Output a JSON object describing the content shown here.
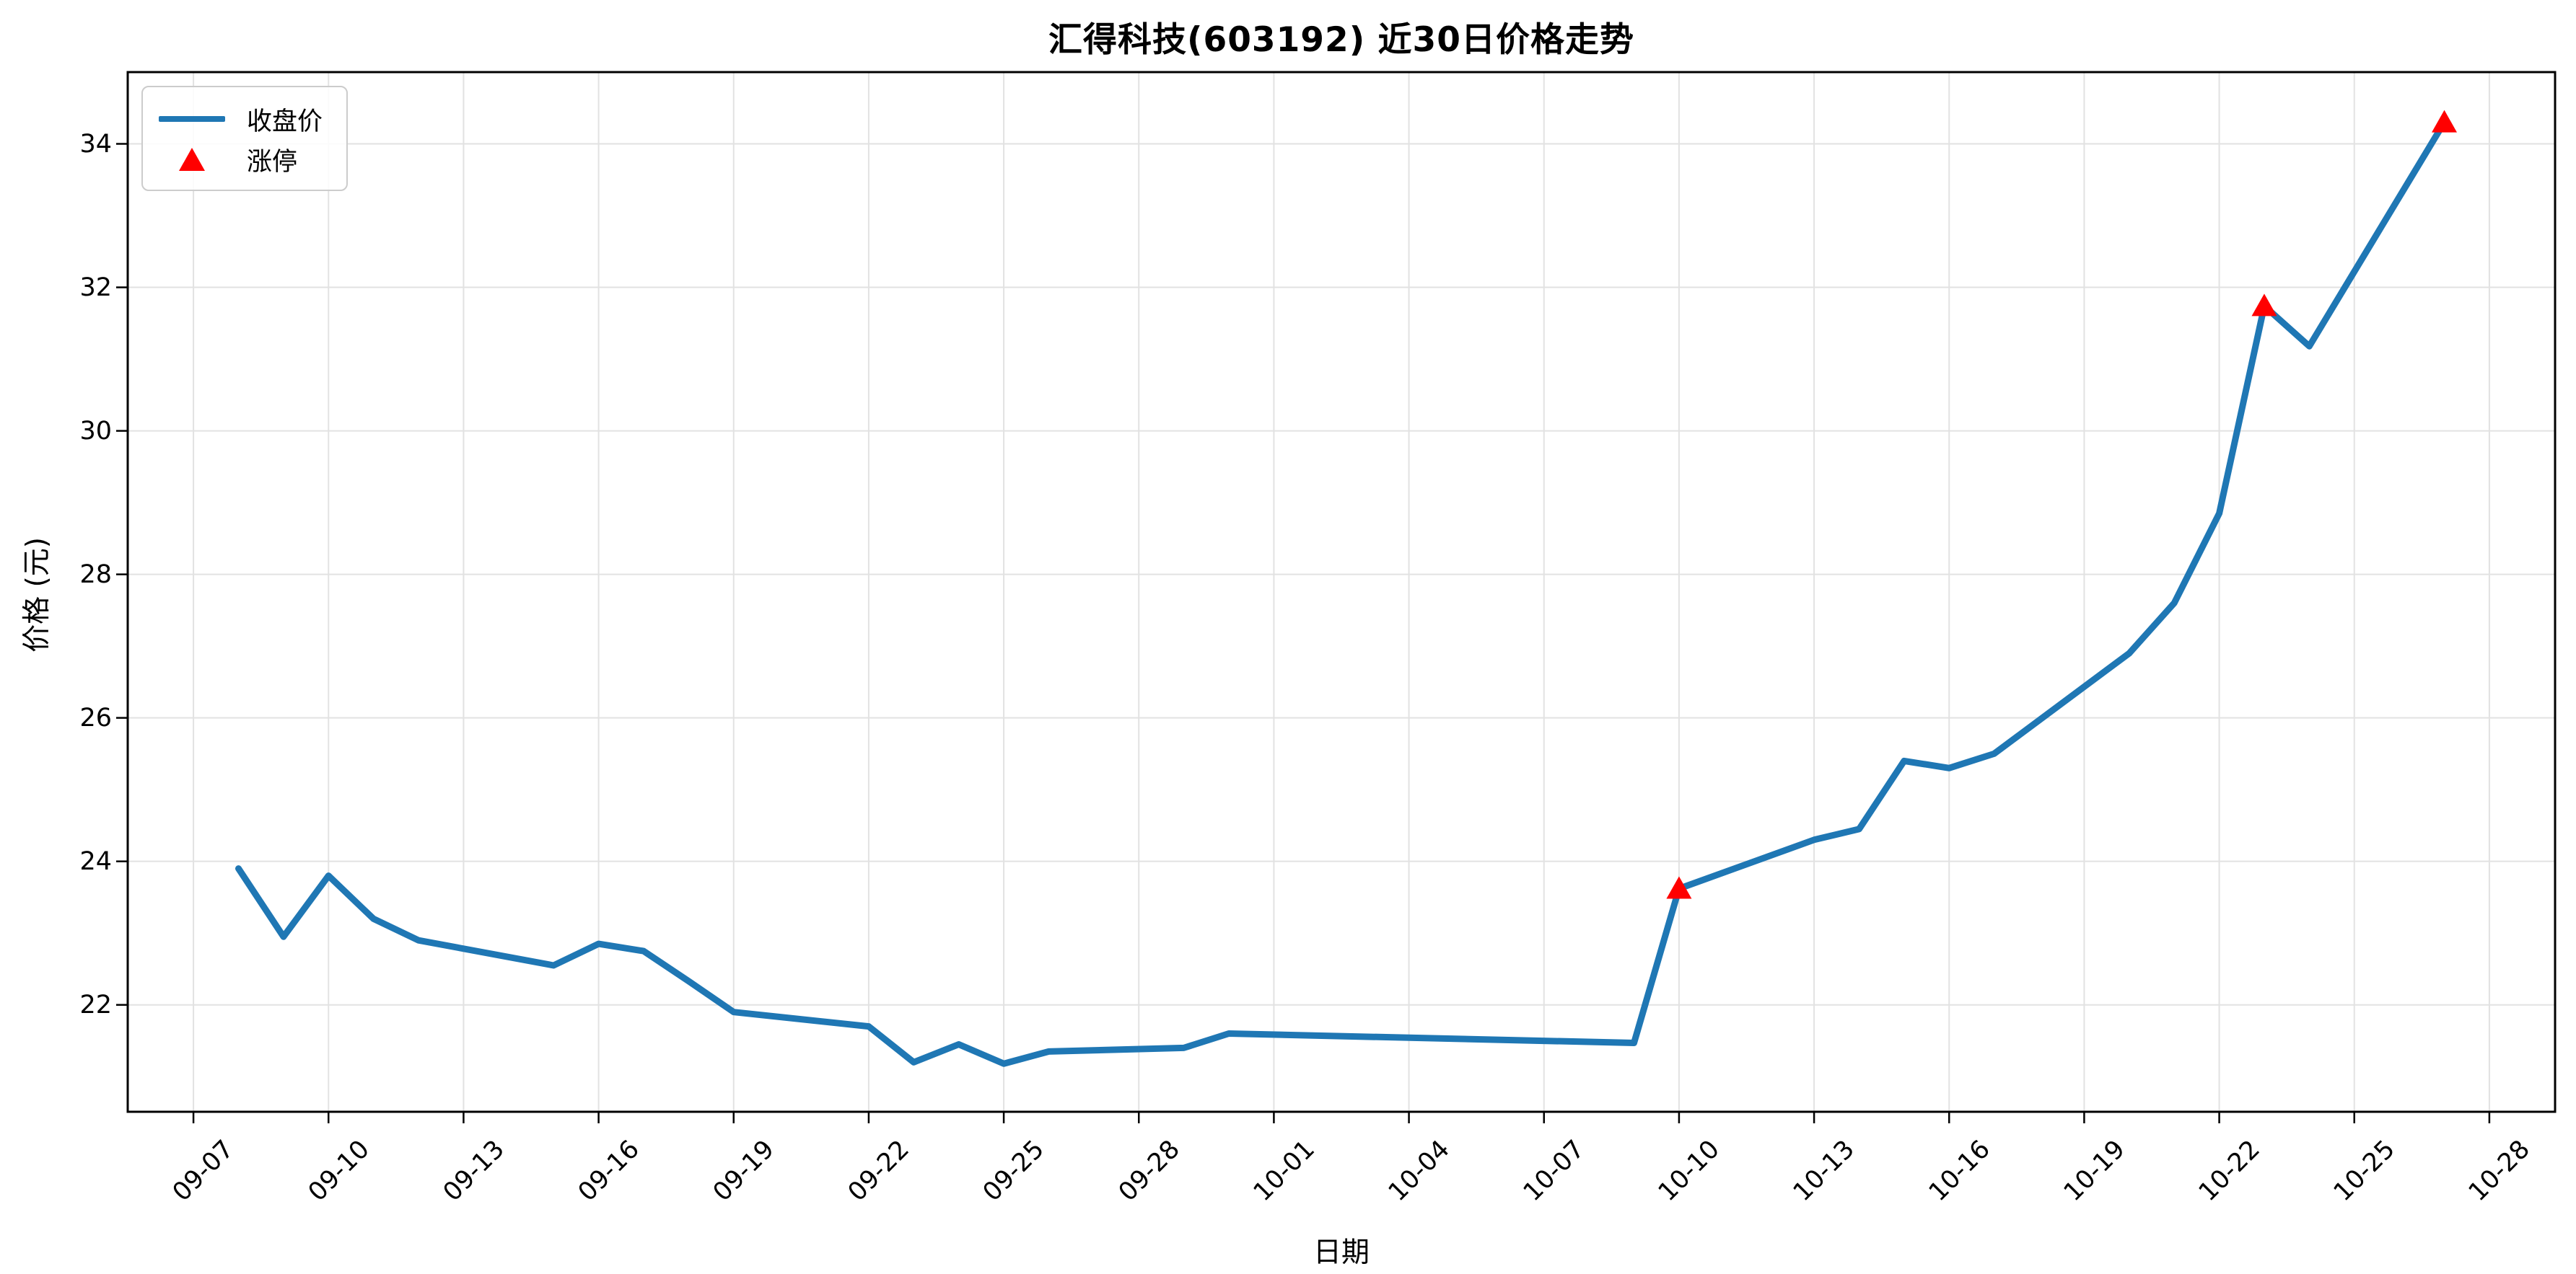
{
  "page": {
    "background": "#ffffff"
  },
  "chart_data": {
    "type": "line",
    "title": "汇得科技(603192) 近30日价格走势",
    "xlabel": "日期",
    "ylabel": "价格 (元)",
    "grid": true,
    "legend_position": "upper left",
    "colors": {
      "close_line": "#1f77b4",
      "limit_up_marker": "#ff0000",
      "grid_line": "#e2e2e2",
      "spine": "#000000",
      "background": "#ffffff"
    },
    "x_tick_labels": [
      "09-07",
      "09-10",
      "09-13",
      "09-16",
      "09-19",
      "09-22",
      "09-25",
      "09-28",
      "10-01",
      "10-04",
      "10-07",
      "10-10",
      "10-13",
      "10-16",
      "10-19",
      "10-22",
      "10-25",
      "10-28"
    ],
    "y_tick_labels": [
      "22",
      "24",
      "26",
      "28",
      "30",
      "32",
      "34"
    ],
    "y_tick_values": [
      22,
      24,
      26,
      28,
      30,
      32,
      34
    ],
    "ylim": [
      20.51,
      35.0
    ],
    "xlim_days_from_0907": [
      -1.46,
      52.46
    ],
    "series": [
      {
        "name": "收盘价",
        "dates": [
          "09-08",
          "09-09",
          "09-10",
          "09-11",
          "09-12",
          "09-15",
          "09-16",
          "09-17",
          "09-18",
          "09-19",
          "09-22",
          "09-23",
          "09-24",
          "09-25",
          "09-26",
          "09-29",
          "09-30",
          "10-09",
          "10-10",
          "10-13",
          "10-14",
          "10-15",
          "10-16",
          "10-17",
          "10-20",
          "10-21",
          "10-22",
          "10-23",
          "10-24",
          "10-27"
        ],
        "values": [
          23.9,
          22.95,
          23.8,
          23.2,
          22.9,
          22.55,
          22.85,
          22.75,
          22.33,
          21.9,
          21.7,
          21.2,
          21.45,
          21.18,
          21.35,
          21.4,
          21.6,
          21.47,
          23.62,
          24.3,
          24.45,
          25.4,
          25.3,
          25.5,
          26.9,
          27.6,
          28.85,
          31.74,
          31.18,
          34.3
        ]
      }
    ],
    "markers": [
      {
        "name": "涨停",
        "shape": "triangle-up",
        "dates": [
          "10-10",
          "10-23",
          "10-27"
        ],
        "values": [
          23.62,
          31.74,
          34.3
        ]
      }
    ]
  },
  "legend": {
    "close_label": "收盘价",
    "limit_up_label": "涨停"
  }
}
